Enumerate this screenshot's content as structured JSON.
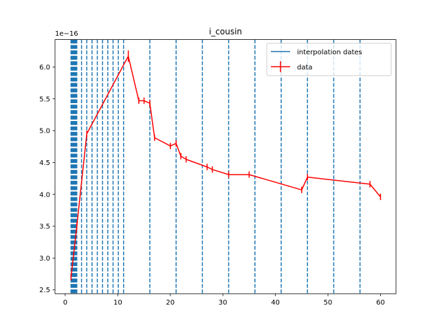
{
  "chart_data": {
    "type": "line",
    "title": "i_cousin",
    "xlabel": "",
    "ylabel": "",
    "offset_text": "1e−16",
    "xlim": [
      -1.95,
      62.95
    ],
    "ylim": [
      2.44,
      6.43
    ],
    "xticks": [
      0,
      10,
      20,
      30,
      40,
      50,
      60
    ],
    "xtick_labels": [
      "0",
      "10",
      "20",
      "30",
      "40",
      "50",
      "60"
    ],
    "yticks": [
      2.5,
      3.0,
      3.5,
      4.0,
      4.5,
      5.0,
      5.5,
      6.0
    ],
    "ytick_labels": [
      "2.5",
      "3.0",
      "3.5",
      "4.0",
      "4.5",
      "5.0",
      "5.5",
      "6.0"
    ],
    "grid": false,
    "legend_position": "top-right",
    "legend": [
      {
        "label": "interpolation dates",
        "style": "line",
        "color": "#1f77b4"
      },
      {
        "label": "data",
        "style": "errorbar",
        "color": "#ff0000"
      }
    ],
    "interpolation_dates": [
      1.1,
      1.2,
      1.3,
      1.4,
      1.5,
      1.6,
      1.7,
      1.8,
      1.9,
      2.0,
      2.1,
      2.2,
      3.1,
      4.1,
      5.1,
      6.1,
      7.1,
      8.1,
      9.1,
      10.1,
      11.1,
      16.1,
      21.1,
      26.1,
      31.1,
      36.1,
      41.1,
      46.1,
      51.1,
      56.1
    ],
    "series": [
      {
        "name": "data",
        "color": "#ff0000",
        "x": [
          1.1,
          2.2,
          4.1,
          12.0,
          14.0,
          15.0,
          16.1,
          17.0,
          20.0,
          21.1,
          22.0,
          23.0,
          27.0,
          28.0,
          31.1,
          35.0,
          45.0,
          46.1,
          58.0,
          60.0
        ],
        "y": [
          2.7,
          3.5,
          4.95,
          6.17,
          5.47,
          5.47,
          5.43,
          4.89,
          4.76,
          4.8,
          4.6,
          4.55,
          4.43,
          4.39,
          4.31,
          4.31,
          4.07,
          4.27,
          4.16,
          3.96
        ],
        "yerr": [
          0.05,
          0.05,
          0.05,
          0.09,
          0.05,
          0.05,
          0.05,
          0.05,
          0.05,
          0.05,
          0.05,
          0.05,
          0.05,
          0.05,
          0.05,
          0.05,
          0.05,
          0.05,
          0.05,
          0.05
        ]
      }
    ]
  }
}
